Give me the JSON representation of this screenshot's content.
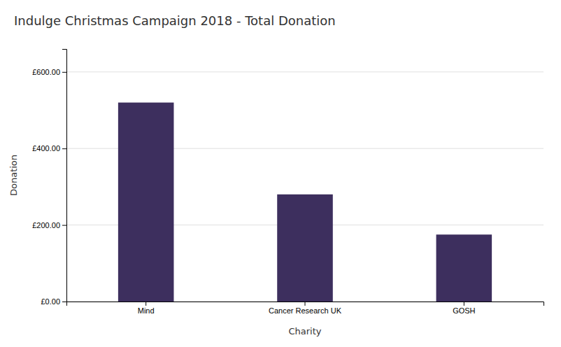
{
  "chart_data": {
    "type": "bar",
    "title": "Indulge Christmas Campaign 2018 - Total Donation",
    "categories": [
      "Mind",
      "Cancer Research UK",
      "GOSH"
    ],
    "values": [
      520,
      280,
      175
    ],
    "color": "#3d2f5e",
    "xlabel": "Charity",
    "ylabel": "Donation",
    "ylim": [
      0,
      660
    ],
    "yticks": [
      {
        "value": 0,
        "label": "£0.00"
      },
      {
        "value": 200,
        "label": "£200.00"
      },
      {
        "value": 400,
        "label": "£400.00"
      },
      {
        "value": 600,
        "label": "£600.00"
      }
    ],
    "grid": true
  }
}
